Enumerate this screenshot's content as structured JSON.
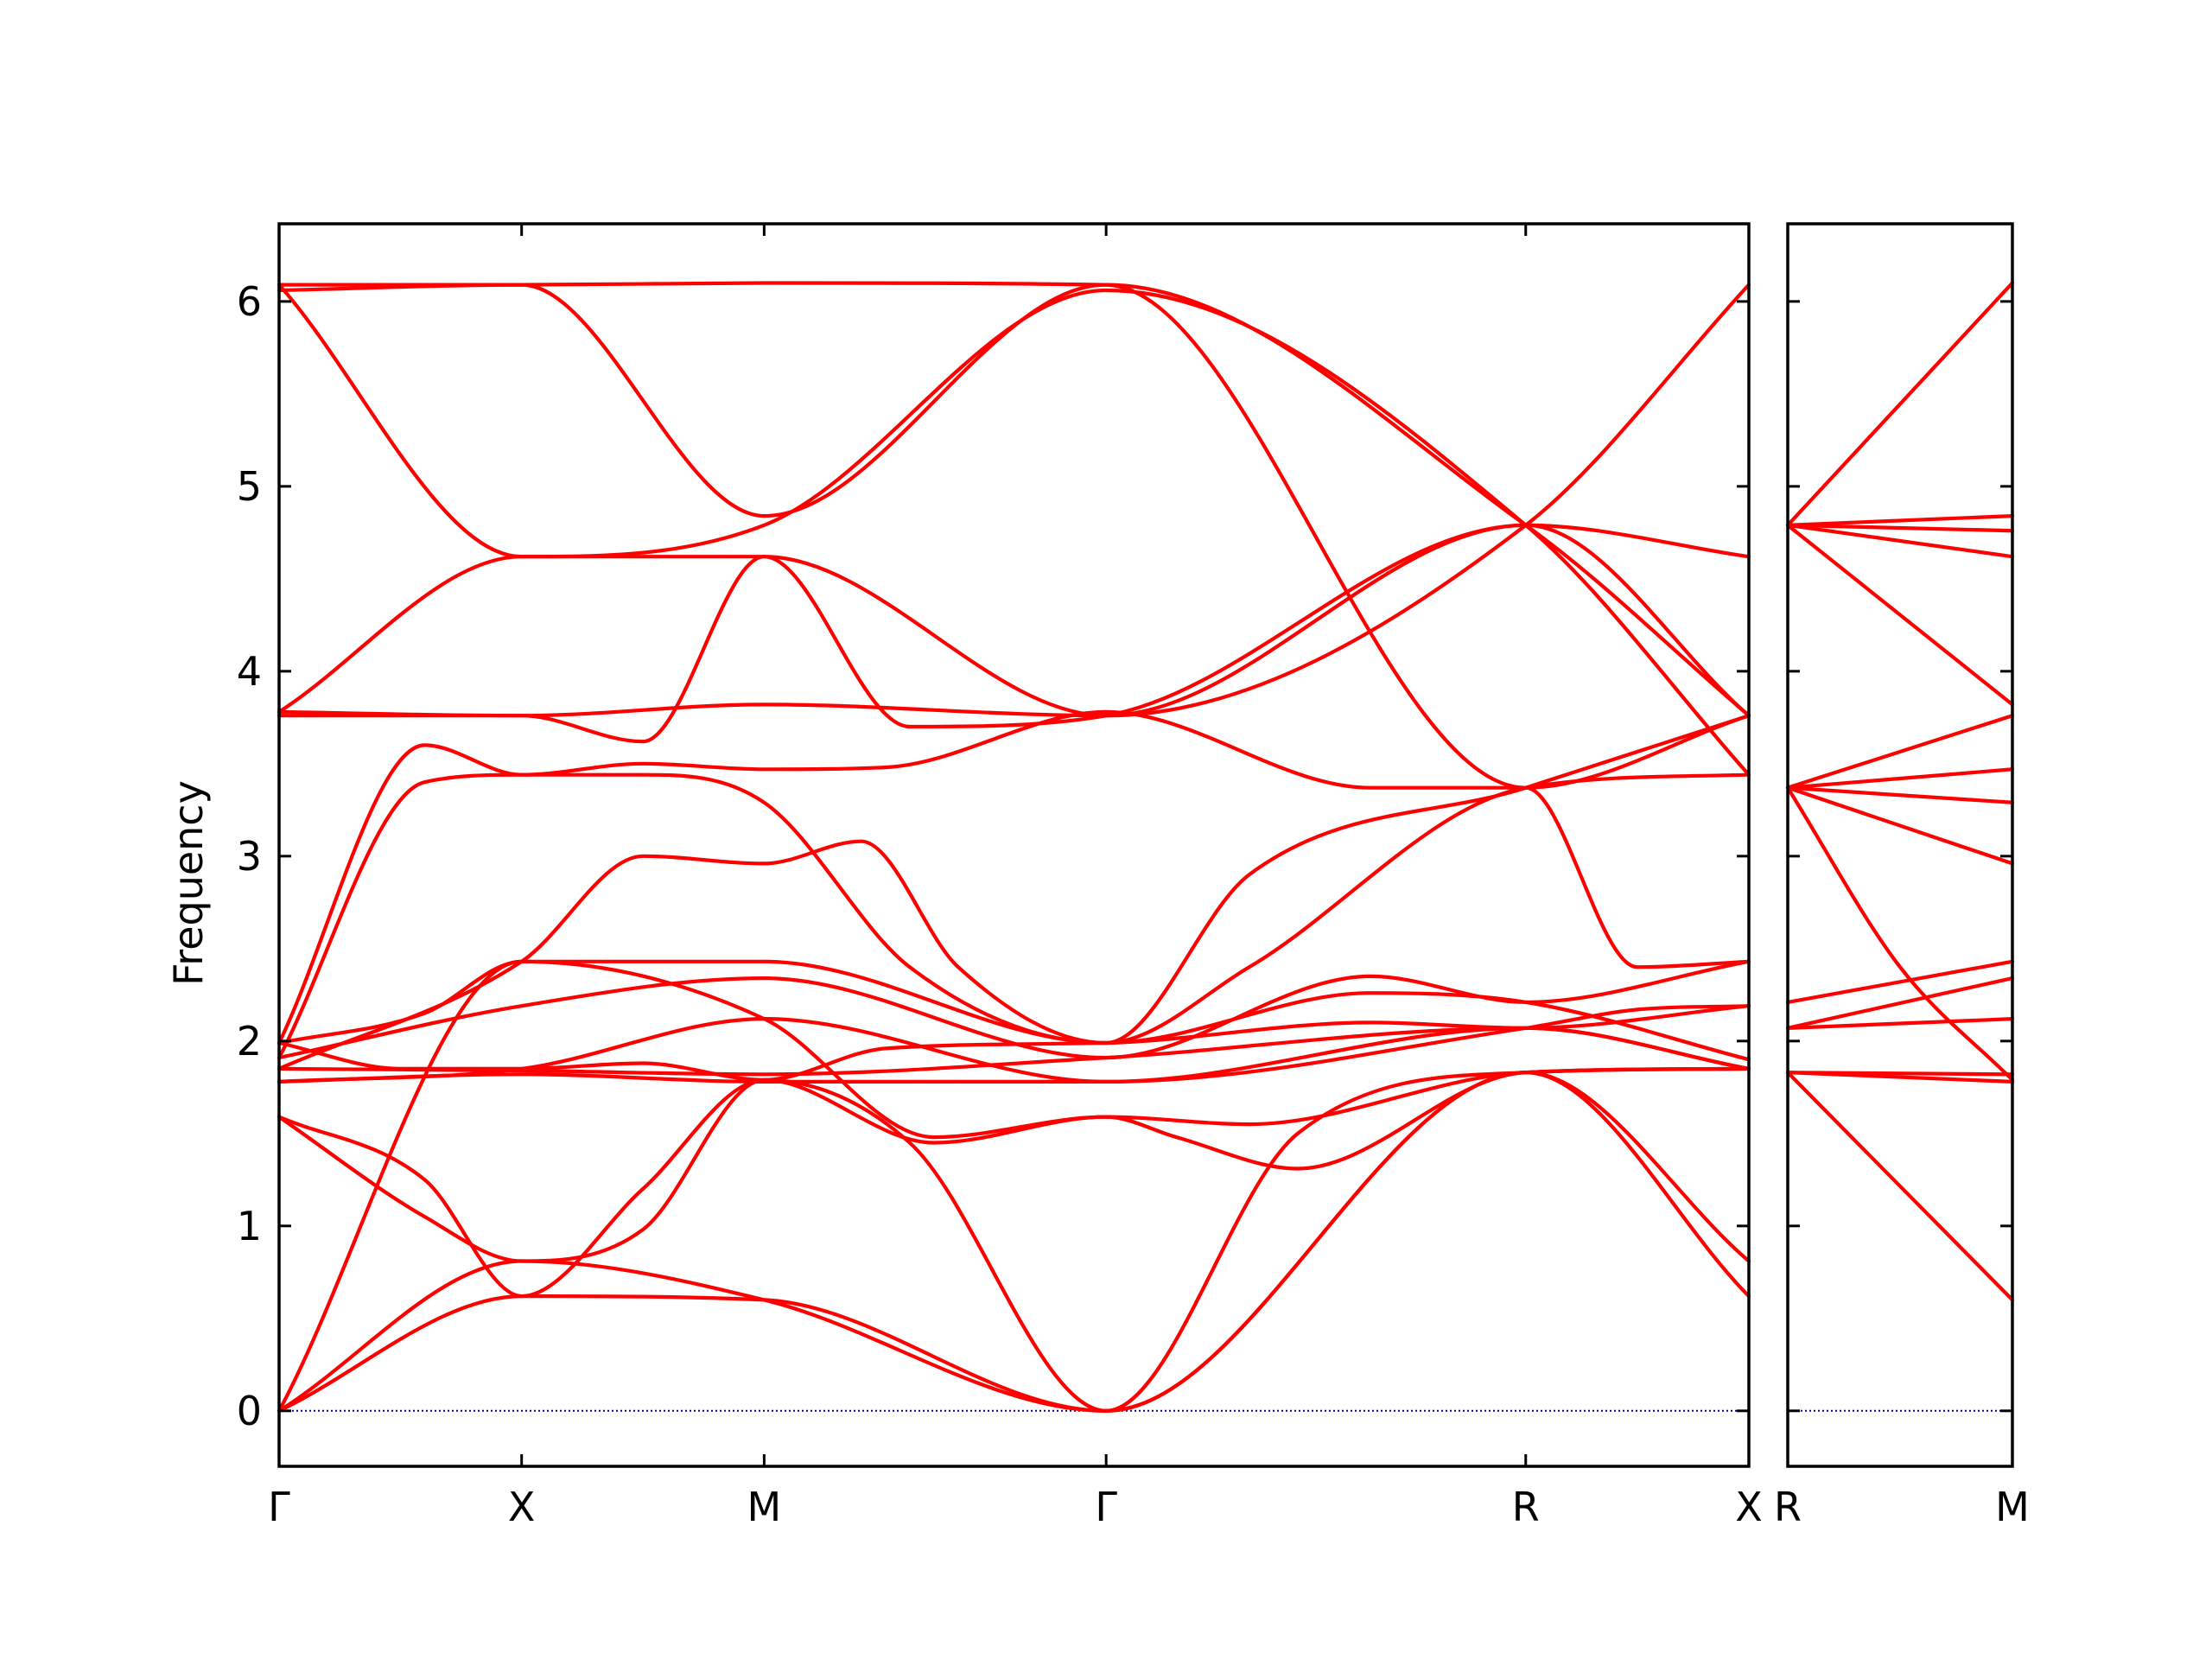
{
  "chart_data": {
    "type": "line",
    "title": "",
    "ylabel": "Frequency",
    "xlabel": "",
    "ylim": [
      -0.3,
      6.42
    ],
    "yticks": [
      0,
      1,
      2,
      3,
      4,
      5,
      6
    ],
    "grid": false,
    "legend": "none",
    "colors": {
      "bands": "#ff0000",
      "zero_line": "#00008b",
      "frame": "#000000"
    },
    "panels": [
      {
        "xrange": [
          0,
          6.06
        ],
        "xticks": [
          {
            "x": 0,
            "label": "Γ"
          },
          {
            "x": 1.0,
            "label": "X"
          },
          {
            "x": 2.0,
            "label": "M"
          },
          {
            "x": 3.41,
            "label": "Γ"
          },
          {
            "x": 5.14,
            "label": "R"
          },
          {
            "x": 6.06,
            "label": "X"
          }
        ],
        "series": [
          {
            "x": [
              0,
              1.0,
              2.0,
              3.41,
              5.14,
              6.06
            ],
            "y": [
              0,
              0.62,
              0.6,
              0,
              1.83,
              0.62
            ]
          },
          {
            "x": [
              0,
              1.0,
              2.0,
              3.41,
              5.14,
              6.06
            ],
            "y": [
              0,
              0.81,
              0.6,
              0,
              1.83,
              0.81
            ]
          },
          {
            "x": [
              0,
              0.6,
              1.0,
              1.5,
              2.0,
              2.6,
              3.41,
              4.2,
              5.14,
              6.06
            ],
            "y": [
              1.59,
              1.05,
              0.81,
              0.98,
              1.79,
              1.45,
              0,
              1.5,
              1.83,
              1.85
            ]
          },
          {
            "x": [
              0,
              0.6,
              1.0,
              1.5,
              2.0,
              2.7,
              3.41,
              3.7,
              4.2,
              5.14,
              6.06
            ],
            "y": [
              1.59,
              1.25,
              0.62,
              1.2,
              1.79,
              1.45,
              1.59,
              1.48,
              1.31,
              1.83,
              1.85
            ]
          },
          {
            "x": [
              0,
              1.0,
              2.0,
              2.7,
              3.41,
              4.0,
              5.14,
              6.06
            ],
            "y": [
              0,
              2.43,
              2.12,
              1.48,
              1.59,
              1.55,
              1.83,
              1.85
            ]
          },
          {
            "x": [
              0,
              1.0,
              2.0,
              3.41,
              5.14,
              5.6,
              6.06
            ],
            "y": [
              1.78,
              1.85,
              2.12,
              1.78,
              2.07,
              2.17,
              2.19
            ]
          },
          {
            "x": [
              0,
              1.0,
              2.0,
              3.41,
              4.5,
              5.14,
              6.06
            ],
            "y": [
              1.91,
              2.19,
              2.34,
              1.91,
              2.35,
              2.21,
              2.43
            ]
          },
          {
            "x": [
              0,
              0.6,
              1.0,
              1.5,
              2.0,
              3.41,
              4.5,
              5.14,
              6.06
            ],
            "y": [
              1.99,
              2.15,
              2.43,
              2.43,
              2.43,
              1.99,
              2.26,
              2.21,
              1.9
            ]
          },
          {
            "x": [
              0,
              1.0,
              2.0,
              3.41,
              5.14,
              6.06
            ],
            "y": [
              1.78,
              1.82,
              1.78,
              1.78,
              2.07,
              1.85
            ]
          },
          {
            "x": [
              0,
              1.0,
              2.0,
              3.41,
              5.14,
              6.06
            ],
            "y": [
              1.85,
              1.84,
              1.82,
              1.91,
              2.07,
              1.85
            ]
          },
          {
            "x": [
              0,
              0.5,
              1.0,
              1.5,
              2.0,
              2.5,
              3.41,
              4.5,
              5.14,
              6.06
            ],
            "y": [
              1.99,
              1.85,
              1.85,
              1.88,
              1.79,
              1.96,
              1.99,
              2.1,
              2.07,
              2.19
            ]
          },
          {
            "x": [
              0,
              0.6,
              1.0,
              1.5,
              2.0,
              2.6,
              3.41,
              4.0,
              5.14,
              6.06
            ],
            "y": [
              1.91,
              3.4,
              3.44,
              3.44,
              3.29,
              2.4,
              1.99,
              2.4,
              3.37,
              3.44
            ]
          },
          {
            "x": [
              0,
              0.6,
              1.0,
              1.5,
              2.0,
              2.5,
              3.41,
              4.5,
              5.14,
              5.6,
              6.06
            ],
            "y": [
              1.99,
              3.6,
              3.44,
              3.5,
              3.47,
              3.48,
              3.78,
              3.37,
              3.37,
              2.4,
              2.43
            ]
          },
          {
            "x": [
              0,
              1.0,
              1.5,
              2.0,
              2.4,
              2.8,
              3.41,
              4.0,
              5.14,
              6.06
            ],
            "y": [
              1.85,
              2.43,
              3.0,
              2.96,
              3.08,
              2.4,
              1.99,
              2.9,
              3.37,
              3.76
            ]
          },
          {
            "x": [
              0,
              1.0,
              2.0,
              3.41,
              5.14,
              6.06
            ],
            "y": [
              3.78,
              3.76,
              3.82,
              3.76,
              4.79,
              6.09
            ]
          },
          {
            "x": [
              0,
              1.0,
              1.5,
              2.0,
              3.41,
              5.14,
              6.06
            ],
            "y": [
              3.76,
              3.76,
              3.62,
              4.62,
              3.76,
              4.79,
              4.62
            ]
          },
          {
            "x": [
              0,
              1.0,
              2.0,
              2.6,
              3.41,
              5.14,
              6.06
            ],
            "y": [
              3.78,
              4.62,
              4.62,
              3.7,
              3.76,
              4.79,
              3.76
            ]
          },
          {
            "x": [
              0,
              1.0,
              2.0,
              3.41,
              5.14,
              6.06
            ],
            "y": [
              6.06,
              6.09,
              4.84,
              6.09,
              4.79,
              3.76
            ]
          },
          {
            "x": [
              0,
              1.0,
              2.0,
              3.41,
              5.14,
              6.06
            ],
            "y": [
              6.09,
              4.62,
              4.79,
              6.06,
              4.79,
              3.44
            ]
          },
          {
            "x": [
              0,
              1.0,
              2.0,
              3.41,
              5.14,
              6.06
            ],
            "y": [
              6.09,
              6.09,
              6.1,
              6.09,
              3.37,
              3.76
            ]
          }
        ]
      },
      {
        "xrange": [
          0,
          1.0
        ],
        "xticks": [
          {
            "x": 0,
            "label": "R"
          },
          {
            "x": 1.0,
            "label": "M"
          }
        ],
        "series": [
          {
            "x": [
              0,
              1.0
            ],
            "y": [
              4.79,
              6.1
            ]
          },
          {
            "x": [
              0,
              1.0
            ],
            "y": [
              4.79,
              4.84
            ]
          },
          {
            "x": [
              0,
              1.0
            ],
            "y": [
              4.79,
              4.76
            ]
          },
          {
            "x": [
              0,
              1.0
            ],
            "y": [
              4.79,
              4.62
            ]
          },
          {
            "x": [
              0,
              1.0
            ],
            "y": [
              4.79,
              3.82
            ]
          },
          {
            "x": [
              0,
              1.0
            ],
            "y": [
              3.37,
              3.76
            ]
          },
          {
            "x": [
              0,
              1.0
            ],
            "y": [
              3.37,
              3.47
            ]
          },
          {
            "x": [
              0,
              1.0
            ],
            "y": [
              3.37,
              3.29
            ]
          },
          {
            "x": [
              0,
              1.0
            ],
            "y": [
              3.37,
              2.96
            ]
          },
          {
            "x": [
              0,
              0.5,
              1.0
            ],
            "y": [
              3.37,
              2.4,
              1.79
            ]
          },
          {
            "x": [
              0,
              1.0
            ],
            "y": [
              2.21,
              2.43
            ]
          },
          {
            "x": [
              0,
              1.0
            ],
            "y": [
              2.07,
              2.34
            ]
          },
          {
            "x": [
              0,
              1.0
            ],
            "y": [
              2.07,
              2.12
            ]
          },
          {
            "x": [
              0,
              1.0
            ],
            "y": [
              1.83,
              1.82
            ]
          },
          {
            "x": [
              0,
              1.0
            ],
            "y": [
              1.83,
              1.78
            ]
          },
          {
            "x": [
              0,
              1.0
            ],
            "y": [
              1.83,
              0.6
            ]
          }
        ]
      }
    ]
  }
}
